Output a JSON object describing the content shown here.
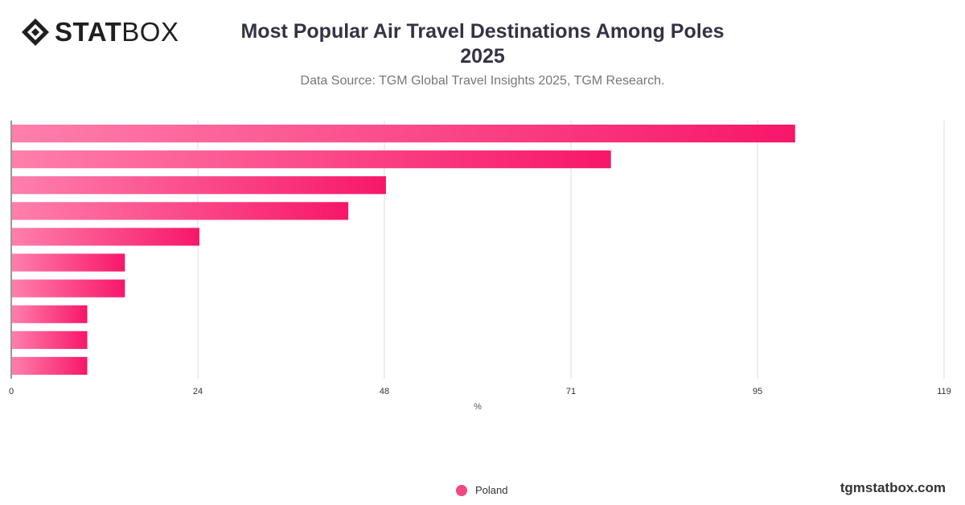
{
  "brand": {
    "logo_stat": "STAT",
    "logo_box": "BOX",
    "watermark": "tgmstatbox.com"
  },
  "header": {
    "title": "Most Popular Air Travel Destinations Among Poles 2025",
    "subtitle": "Data Source: TGM Global Travel Insights 2025, TGM Research."
  },
  "colors": {
    "bar_start": "#ff7fab",
    "bar_end": "#f7176a",
    "legend_marker": "#f2477f",
    "grid": "#dddddd",
    "axis": "#333333"
  },
  "chart_data": {
    "type": "bar",
    "orientation": "horizontal",
    "categories": [
      "",
      "",
      "",
      "",
      "",
      "",
      "",
      "",
      "",
      ""
    ],
    "series": [
      {
        "name": "Poland",
        "values": [
          100,
          76.5,
          47.8,
          43,
          24,
          14.5,
          14.5,
          9.7,
          9.7,
          9.7
        ]
      }
    ],
    "xlabel": "%",
    "ylabel": "",
    "xlim": [
      0,
      119
    ],
    "xticks": [
      "0",
      "24",
      "48",
      "71",
      "95",
      "119"
    ],
    "grid": true,
    "legend_position": "bottom"
  }
}
